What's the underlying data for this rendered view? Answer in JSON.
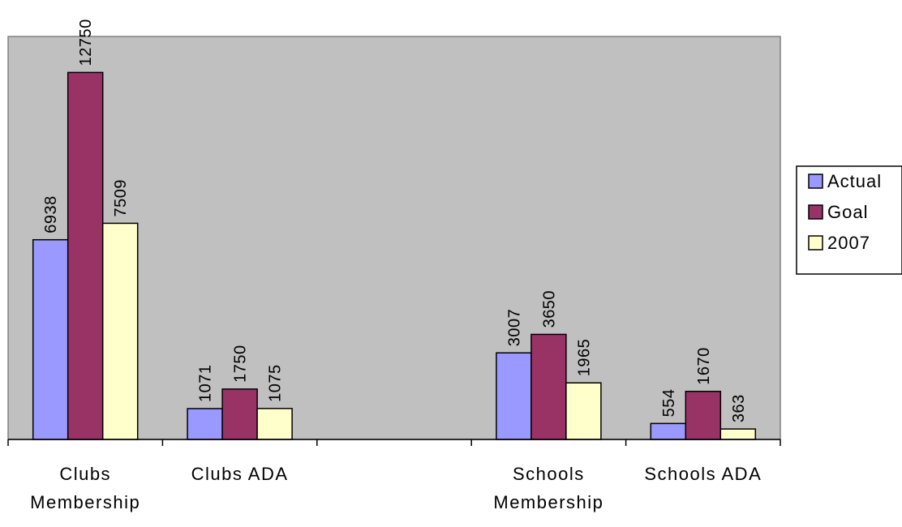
{
  "chart_data": {
    "type": "bar",
    "title": "",
    "xlabel": "",
    "ylabel": "",
    "categories": [
      [
        "Clubs",
        "Membership"
      ],
      [
        "Clubs ADA"
      ],
      [],
      [
        "Schools",
        "Membership"
      ],
      [
        "Schools ADA"
      ]
    ],
    "series": [
      {
        "name": "Actual",
        "color": "#9999ff",
        "values": [
          6938,
          1071,
          null,
          3007,
          554
        ]
      },
      {
        "name": "Goal",
        "color": "#993366",
        "values": [
          12750,
          1750,
          null,
          3650,
          1670
        ]
      },
      {
        "name": "2007",
        "color": "#ffffcc",
        "values": [
          7509,
          1075,
          null,
          1965,
          363
        ]
      }
    ],
    "ylim": [
      0,
      14000
    ],
    "grid": false,
    "plot_background": "#c0c0c0",
    "legend_position": "right",
    "data_labels": true
  }
}
